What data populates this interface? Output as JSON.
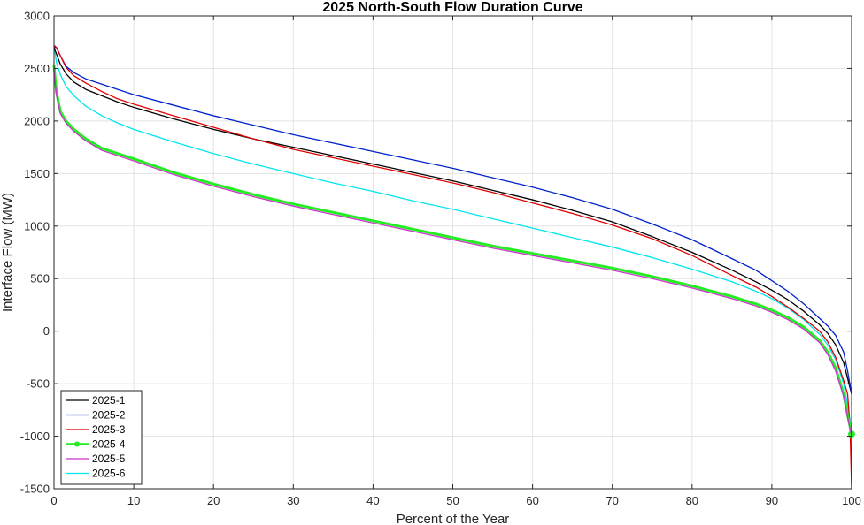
{
  "chart_data": {
    "type": "line",
    "title": "2025 North-South Flow Duration Curve",
    "xlabel": "Percent of the Year",
    "ylabel": "Interface Flow (MW)",
    "xlim": [
      0,
      100
    ],
    "ylim": [
      -1500,
      3000
    ],
    "xticks": [
      0,
      10,
      20,
      30,
      40,
      50,
      60,
      70,
      80,
      90,
      100
    ],
    "yticks": [
      -1500,
      -1000,
      -500,
      0,
      500,
      1000,
      1500,
      2000,
      2500,
      3000
    ],
    "grid": true,
    "legend_position": "bottom-left",
    "series": [
      {
        "name": "2025-1",
        "color": "#000000",
        "marker": "none",
        "x": [
          0,
          0.3,
          0.8,
          1.5,
          2.5,
          4,
          6,
          8,
          10,
          15,
          20,
          25,
          30,
          35,
          40,
          45,
          50,
          55,
          60,
          65,
          70,
          75,
          80,
          85,
          88,
          90,
          92,
          94,
          96,
          97,
          98,
          99,
          99.5,
          100
        ],
        "y": [
          2700,
          2640,
          2540,
          2450,
          2370,
          2300,
          2240,
          2180,
          2130,
          2020,
          1920,
          1830,
          1750,
          1670,
          1590,
          1510,
          1430,
          1340,
          1250,
          1150,
          1040,
          900,
          750,
          580,
          470,
          390,
          300,
          190,
          60,
          -20,
          -130,
          -300,
          -450,
          -600
        ]
      },
      {
        "name": "2025-2",
        "color": "#0022cc",
        "marker": "none",
        "x": [
          0,
          0.3,
          0.8,
          1.5,
          2.5,
          4,
          6,
          8,
          10,
          15,
          20,
          25,
          30,
          35,
          40,
          45,
          50,
          55,
          60,
          65,
          70,
          75,
          80,
          85,
          88,
          90,
          92,
          94,
          96,
          97,
          98,
          99,
          99.5,
          100
        ],
        "y": [
          2700,
          2700,
          2620,
          2520,
          2460,
          2400,
          2350,
          2300,
          2250,
          2150,
          2050,
          1960,
          1870,
          1790,
          1710,
          1630,
          1550,
          1460,
          1370,
          1270,
          1160,
          1020,
          870,
          690,
          580,
          480,
          380,
          260,
          120,
          50,
          -40,
          -200,
          -380,
          -600
        ]
      },
      {
        "name": "2025-3",
        "color": "#e00000",
        "marker": "none",
        "x": [
          0,
          0.3,
          0.8,
          1.5,
          2.5,
          4,
          6,
          8,
          10,
          15,
          20,
          25,
          30,
          35,
          40,
          45,
          50,
          55,
          60,
          65,
          70,
          75,
          80,
          85,
          88,
          90,
          92,
          94,
          96,
          97,
          98,
          99,
          99.5,
          99.8,
          100
        ],
        "y": [
          2720,
          2700,
          2620,
          2510,
          2430,
          2360,
          2280,
          2210,
          2160,
          2050,
          1940,
          1830,
          1730,
          1650,
          1570,
          1490,
          1410,
          1320,
          1220,
          1120,
          1010,
          880,
          720,
          530,
          420,
          330,
          230,
          120,
          0,
          -100,
          -250,
          -470,
          -600,
          -900,
          -1500
        ]
      },
      {
        "name": "2025-4",
        "color": "#22ee22",
        "marker": "circle",
        "x": [
          0,
          0.3,
          0.8,
          1.5,
          2.5,
          4,
          6,
          8,
          10,
          15,
          20,
          25,
          30,
          35,
          40,
          45,
          50,
          55,
          60,
          65,
          70,
          75,
          80,
          85,
          88,
          90,
          92,
          94,
          96,
          97,
          98,
          99,
          99.5,
          100
        ],
        "y": [
          2530,
          2280,
          2090,
          2000,
          1920,
          1830,
          1740,
          1690,
          1640,
          1510,
          1400,
          1300,
          1210,
          1130,
          1050,
          970,
          890,
          810,
          740,
          670,
          600,
          520,
          430,
          330,
          260,
          200,
          130,
          40,
          -90,
          -200,
          -350,
          -600,
          -800,
          -980
        ]
      },
      {
        "name": "2025-5",
        "color": "#cc33cc",
        "marker": "none",
        "x": [
          0,
          0.3,
          0.8,
          1.5,
          2.5,
          4,
          6,
          8,
          10,
          15,
          20,
          25,
          30,
          35,
          40,
          45,
          50,
          55,
          60,
          65,
          70,
          75,
          80,
          85,
          88,
          90,
          92,
          94,
          96,
          97,
          98,
          99,
          99.5,
          100
        ],
        "y": [
          2480,
          2250,
          2070,
          1980,
          1900,
          1810,
          1720,
          1670,
          1620,
          1490,
          1380,
          1280,
          1190,
          1110,
          1030,
          950,
          870,
          790,
          720,
          650,
          580,
          500,
          410,
          310,
          240,
          180,
          110,
          20,
          -110,
          -220,
          -380,
          -620,
          -820,
          -1000
        ]
      },
      {
        "name": "2025-6",
        "color": "#00e5ee",
        "marker": "none",
        "x": [
          0,
          0.3,
          0.8,
          1.5,
          2.5,
          4,
          6,
          8,
          10,
          15,
          20,
          25,
          30,
          35,
          40,
          45,
          50,
          55,
          60,
          65,
          70,
          75,
          80,
          85,
          88,
          90,
          92,
          94,
          96,
          97,
          98,
          99,
          99.5,
          100
        ],
        "y": [
          2720,
          2560,
          2440,
          2330,
          2240,
          2140,
          2050,
          1980,
          1920,
          1800,
          1690,
          1590,
          1500,
          1410,
          1330,
          1240,
          1160,
          1070,
          980,
          890,
          800,
          700,
          590,
          470,
          380,
          310,
          220,
          110,
          -30,
          -130,
          -270,
          -500,
          -700,
          -950
        ]
      }
    ]
  }
}
